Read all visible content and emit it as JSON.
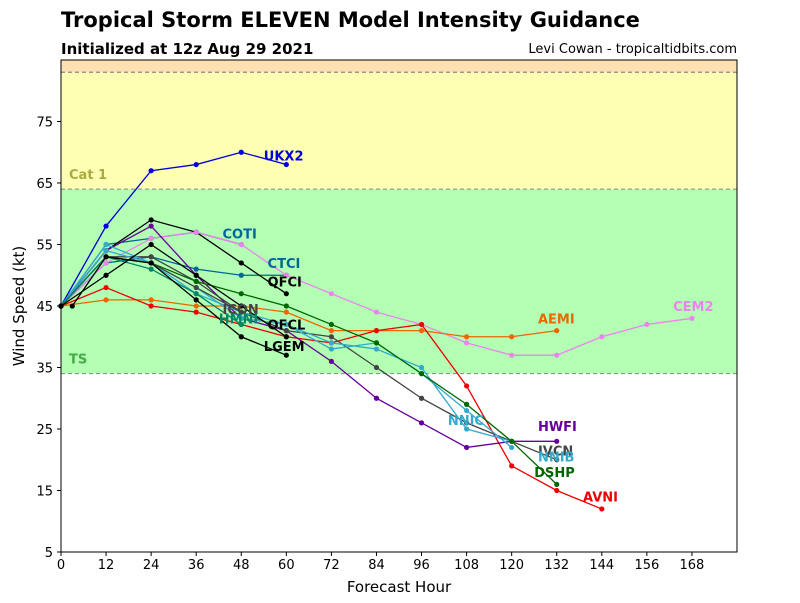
{
  "header": {
    "title": "Tropical Storm ELEVEN Model Intensity Guidance",
    "subtitle": "Initialized at 12z Aug 29 2021",
    "credit": "Levi Cowan - tropicaltidbits.com"
  },
  "chart_data": {
    "type": "line",
    "xlabel": "Forecast Hour",
    "ylabel": "Wind Speed (kt)",
    "xlim": [
      0,
      180
    ],
    "ylim": [
      5,
      85
    ],
    "xticks": [
      0,
      12,
      24,
      36,
      48,
      60,
      72,
      84,
      96,
      108,
      120,
      132,
      144,
      156,
      168
    ],
    "yticks": [
      5,
      15,
      25,
      35,
      45,
      55,
      65,
      75
    ],
    "grid": false,
    "bands": [
      {
        "label": "TS",
        "from": 34,
        "to": 64,
        "color": "#b3ffb3",
        "label_color": "#44aa44",
        "label_y": 36.5
      },
      {
        "label": "Cat 1",
        "from": 64,
        "to": 83,
        "color": "#ffffb3",
        "label_color": "#aaaa44",
        "label_y": 66.5
      },
      {
        "label": "",
        "from": 83,
        "to": 85,
        "color": "#ffe0b3",
        "label_color": "#000000",
        "label_y": 84
      }
    ],
    "series": [
      {
        "name": "UKX2",
        "color": "#0000dd",
        "x": [
          0,
          12,
          24,
          36,
          48,
          60
        ],
        "y": [
          45,
          58,
          67,
          68,
          70,
          68
        ],
        "label_x": 54,
        "label_y": 69.5
      },
      {
        "name": "COTI",
        "color": "#006699",
        "x": [
          0,
          12,
          24,
          36,
          48
        ],
        "y": [
          45,
          55,
          56,
          57,
          55
        ],
        "label_x": 43,
        "label_y": 56.8
      },
      {
        "name": "CTCI",
        "color": "#006699",
        "x": [
          0,
          12,
          24,
          36,
          48,
          60
        ],
        "y": [
          45,
          52,
          53,
          51,
          50,
          50
        ],
        "label_x": 55,
        "label_y": 52
      },
      {
        "name": "QFCI",
        "color": "#000000",
        "x": [
          0,
          12,
          24,
          36,
          48,
          60
        ],
        "y": [
          45,
          54,
          59,
          57,
          52,
          47
        ],
        "label_x": 55,
        "label_y": 49
      },
      {
        "name": "CEM2",
        "color": "#ee82ee",
        "x": [
          0,
          12,
          24,
          36,
          48,
          60,
          72,
          84,
          96,
          108,
          120,
          132,
          144,
          156,
          168
        ],
        "y": [
          45,
          52,
          56,
          57,
          55,
          50,
          47,
          44,
          42,
          39,
          37,
          37,
          40,
          42,
          43
        ],
        "label_x": 163,
        "label_y": 45
      },
      {
        "name": "AEMI",
        "color": "#ee6600",
        "x": [
          0,
          12,
          24,
          36,
          48,
          60,
          72,
          84,
          96,
          108,
          120,
          132
        ],
        "y": [
          45,
          46,
          46,
          45,
          45,
          44,
          41,
          41,
          41,
          40,
          40,
          41
        ],
        "label_x": 127,
        "label_y": 43
      },
      {
        "name": "AVNI",
        "color": "#ee0000",
        "x": [
          0,
          12,
          24,
          36,
          48,
          60,
          72,
          84,
          96,
          108,
          120,
          132,
          144
        ],
        "y": [
          45,
          48,
          45,
          44,
          42,
          40,
          39,
          41,
          42,
          32,
          19,
          15,
          12
        ],
        "label_x": 139,
        "label_y": 14
      },
      {
        "name": "HWFI",
        "color": "#660099",
        "x": [
          0,
          12,
          24,
          36,
          48,
          60,
          72,
          84,
          96,
          108,
          120,
          132
        ],
        "y": [
          45,
          54,
          58,
          50,
          43,
          41,
          36,
          30,
          26,
          22,
          23,
          23
        ],
        "label_x": 127,
        "label_y": 25.5
      },
      {
        "name": "IVCN",
        "color": "#444444",
        "x": [
          0,
          12,
          24,
          36,
          48,
          60,
          72,
          84,
          96,
          108,
          120,
          132
        ],
        "y": [
          45,
          53,
          53,
          49,
          44,
          41,
          40,
          35,
          30,
          26,
          23,
          20
        ],
        "label_x": 127,
        "label_y": 21.5
      },
      {
        "name": "NNIB",
        "color": "#33aacc",
        "x": [
          0,
          12,
          24,
          36,
          48,
          60,
          72,
          84,
          96,
          108,
          120
        ],
        "y": [
          45,
          55,
          52,
          48,
          43,
          42,
          39,
          38,
          35,
          25,
          23
        ],
        "label_x": 127,
        "label_y": 20.5
      },
      {
        "name": "NNIC",
        "color": "#33aacc",
        "x": [
          0,
          12,
          24,
          36,
          48,
          60,
          72,
          84,
          96,
          108,
          120
        ],
        "y": [
          45,
          54,
          52,
          47,
          44,
          42,
          38,
          39,
          34,
          28,
          22
        ],
        "label_x": 103,
        "label_y": 26.5
      },
      {
        "name": "DSHP",
        "color": "#006600",
        "x": [
          0,
          12,
          24,
          36,
          48,
          60,
          72,
          84,
          96,
          108,
          120,
          132
        ],
        "y": [
          45,
          53,
          52,
          49,
          47,
          45,
          42,
          39,
          34,
          29,
          23,
          16
        ],
        "label_x": 126,
        "label_y": 18
      },
      {
        "name": "ICON",
        "color": "#444444",
        "x": [
          0,
          12,
          24,
          36,
          48
        ],
        "y": [
          45,
          53,
          52,
          48,
          44
        ],
        "label_x": 43,
        "label_y": 44.5
      },
      {
        "name": "HMNI",
        "color": "#008866",
        "x": [
          0,
          12,
          24,
          36,
          48
        ],
        "y": [
          45,
          53,
          51,
          47,
          42
        ],
        "label_x": 42,
        "label_y": 43
      },
      {
        "name": "OFCL",
        "color": "#000000",
        "x": [
          0,
          12,
          24,
          36,
          48,
          60
        ],
        "y": [
          45,
          50,
          55,
          50,
          45,
          40
        ],
        "label_x": 55,
        "label_y": 42
      },
      {
        "name": "LGEM",
        "color": "#000000",
        "x": [
          3,
          12,
          24,
          36,
          48,
          60
        ],
        "y": [
          45,
          53,
          52,
          46,
          40,
          37
        ],
        "label_x": 54,
        "label_y": 38.5
      }
    ]
  }
}
